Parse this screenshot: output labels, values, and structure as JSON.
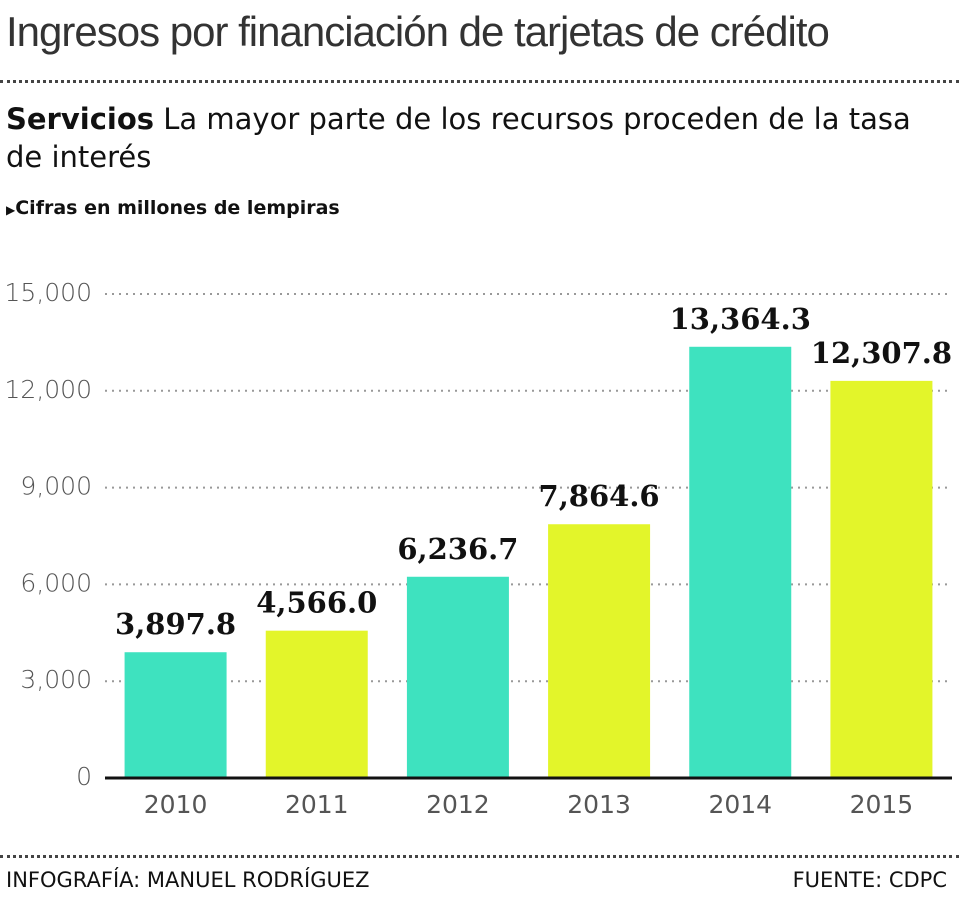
{
  "chart_data": {
    "type": "bar",
    "title": "Ingresos por financiación de tarjetas de crédito",
    "subtitle_label": "Servicios",
    "subtitle": "La mayor parte de los recursos proceden de la tasa de interés",
    "note": "Cifras en millones de lempiras",
    "categories": [
      "2010",
      "2011",
      "2012",
      "2013",
      "2014",
      "2015"
    ],
    "values": [
      3897.8,
      4566.0,
      6236.7,
      7864.6,
      13364.3,
      12307.8
    ],
    "value_labels": [
      "3,897.8",
      "4,566.0",
      "6,236.7",
      "7,864.6",
      "13,364.3",
      "12,307.8"
    ],
    "colors": [
      "#3ee2bf",
      "#e3f52a",
      "#3ee2bf",
      "#e3f52a",
      "#3ee2bf",
      "#e3f52a"
    ],
    "ylim": [
      0,
      15000
    ],
    "yticks": [
      0,
      {
        "value": 3000,
        "label": "3,000"
      },
      {
        "value": 6000,
        "label": "6,000"
      },
      {
        "value": 9000,
        "label": "9,000"
      },
      {
        "value": 12000,
        "label": "12,000"
      },
      {
        "value": 15000,
        "label": "15,000"
      }
    ],
    "grid": true,
    "credit": "INFOGRAFÍA: MANUEL RODRÍGUEZ",
    "source": "FUENTE: CDPC"
  }
}
